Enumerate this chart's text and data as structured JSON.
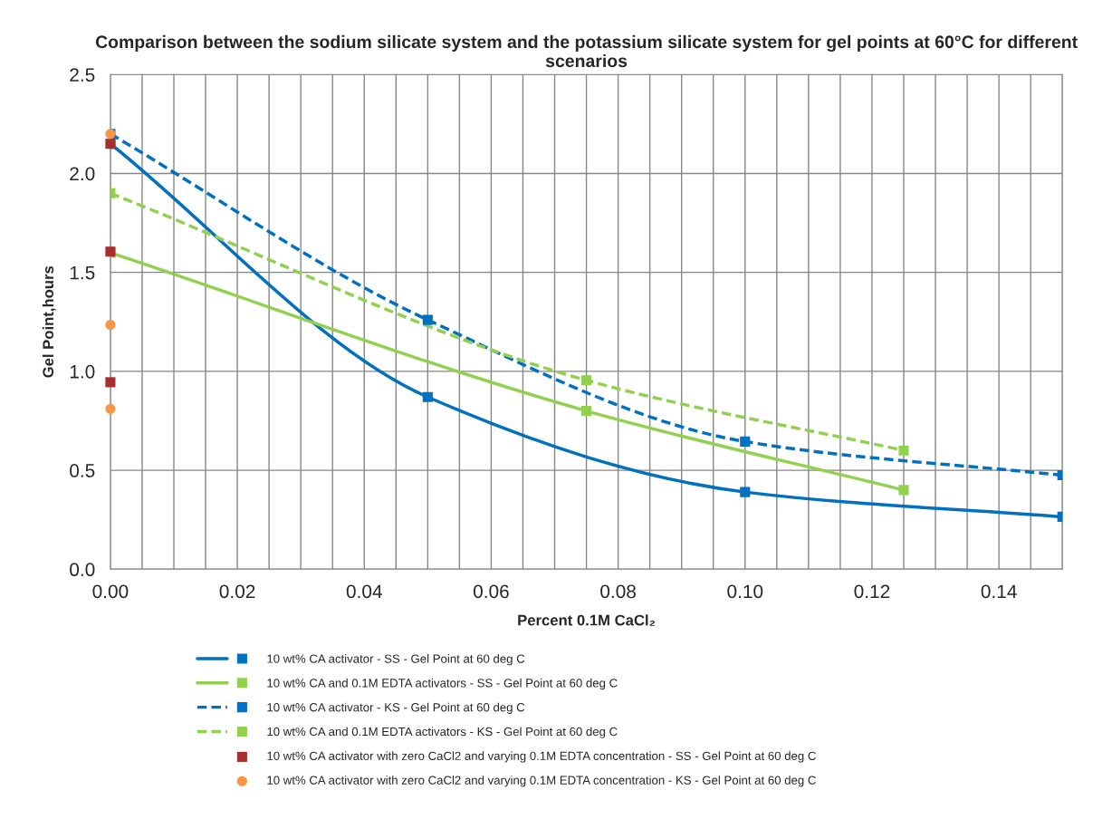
{
  "chart_data": {
    "type": "line",
    "title": "Comparison between the sodium silicate system and the potassium silicate system for gel points at 60°C for different scenarios",
    "xlabel": "Percent 0.1M CaCl₂",
    "ylabel": "Gel Point,hours",
    "series": [
      {
        "name": "10 wt% CA activator - SS - Gel Point at 60 deg C",
        "color": "#0070c0",
        "marker": "square",
        "line_style": "solid",
        "x": [
          0,
          0.05,
          0.1,
          0.15
        ],
        "values": [
          2.15,
          0.87,
          0.39,
          0.265
        ]
      },
      {
        "name": "10 wt% CA and 0.1M EDTA activators - SS - Gel Point at 60 deg C",
        "color": "#92d050",
        "marker": "square",
        "line_style": "solid",
        "x": [
          0,
          0.075,
          0.125
        ],
        "values": [
          1.6,
          0.8,
          0.4
        ]
      },
      {
        "name": "10 wt% CA activator - KS - Gel Point at 60 deg C",
        "color": "#0070c0",
        "marker": "square",
        "line_style": "dashed",
        "x": [
          0,
          0.05,
          0.1,
          0.15
        ],
        "values": [
          2.2,
          1.26,
          0.645,
          0.475
        ]
      },
      {
        "name": "10 wt% CA and 0.1M EDTA activators - KS - Gel Point at 60 deg C",
        "color": "#92d050",
        "marker": "square",
        "line_style": "dashed",
        "x": [
          0,
          0.075,
          0.125
        ],
        "values": [
          1.9,
          0.955,
          0.6
        ]
      },
      {
        "name": "10 wt% CA activator with zero CaCl2 and varying 0.1M EDTA concentration - SS - Gel Point at 60 deg C",
        "type": "scatter",
        "color": "#a5302e",
        "marker": "square",
        "x": [
          0,
          0,
          0
        ],
        "values": [
          2.15,
          1.605,
          0.945
        ]
      },
      {
        "name": "10 wt% CA activator with zero CaCl2 and varying 0.1M EDTA concentration - KS - Gel Point at 60 deg C",
        "type": "scatter",
        "color": "#f79646",
        "marker": "circle",
        "x": [
          0,
          0,
          0
        ],
        "values": [
          2.2,
          1.235,
          0.81
        ]
      }
    ],
    "xlim": [
      0,
      0.15
    ],
    "xticks": [
      {
        "value": 0,
        "label": "0.00"
      },
      {
        "value": 0.005,
        "label": null
      },
      {
        "value": 0.01,
        "label": null
      },
      {
        "value": 0.015,
        "label": null
      },
      {
        "value": 0.02,
        "label": "0.02"
      },
      {
        "value": 0.025,
        "label": null
      },
      {
        "value": 0.03,
        "label": null
      },
      {
        "value": 0.035,
        "label": null
      },
      {
        "value": 0.04,
        "label": "0.04"
      },
      {
        "value": 0.045,
        "label": null
      },
      {
        "value": 0.05,
        "label": null
      },
      {
        "value": 0.055,
        "label": null
      },
      {
        "value": 0.06,
        "label": "0.06"
      },
      {
        "value": 0.065,
        "label": null
      },
      {
        "value": 0.07,
        "label": null
      },
      {
        "value": 0.075,
        "label": null
      },
      {
        "value": 0.08,
        "label": "0.08"
      },
      {
        "value": 0.085,
        "label": null
      },
      {
        "value": 0.09,
        "label": null
      },
      {
        "value": 0.095,
        "label": null
      },
      {
        "value": 0.1,
        "label": "0.10"
      },
      {
        "value": 0.105,
        "label": null
      },
      {
        "value": 0.11,
        "label": null
      },
      {
        "value": 0.115,
        "label": null
      },
      {
        "value": 0.12,
        "label": "0.12"
      },
      {
        "value": 0.125,
        "label": null
      },
      {
        "value": 0.13,
        "label": null
      },
      {
        "value": 0.135,
        "label": null
      },
      {
        "value": 0.14,
        "label": "0.14"
      },
      {
        "value": 0.145,
        "label": null
      },
      {
        "value": 0.15,
        "label": null
      }
    ],
    "ylim": [
      0,
      2.5
    ],
    "yticks": [
      {
        "value": 0,
        "label": "0.0"
      },
      {
        "value": 0.5,
        "label": "0.5"
      },
      {
        "value": 1,
        "label": "1.0"
      },
      {
        "value": 1.5,
        "label": "1.5"
      },
      {
        "value": 2,
        "label": "2.0"
      },
      {
        "value": 2.5,
        "label": "2.5"
      }
    ],
    "grid": true,
    "legend": "bottom"
  }
}
